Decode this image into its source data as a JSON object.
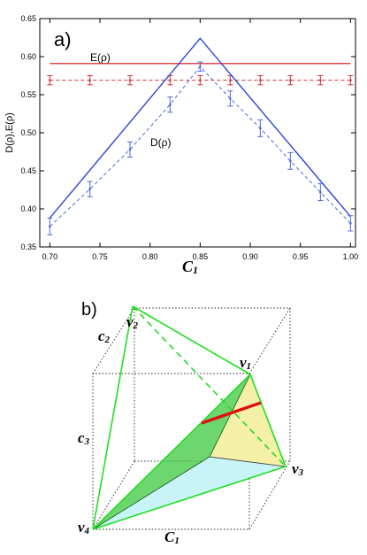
{
  "panel_a": {
    "label": "a)",
    "ylabel": "D(ρ),E(ρ)",
    "xlabel_main": "C",
    "xlabel_sub": "1",
    "annotation_E": "E(ρ)",
    "annotation_D": "D(ρ)"
  },
  "chart_data": {
    "type": "line",
    "xlim": [
      0.69,
      1.005
    ],
    "ylim": [
      0.35,
      0.65
    ],
    "x_ticks": [
      "0.70",
      "0.75",
      "0.80",
      "0.85",
      "0.90",
      "0.95",
      "1.00"
    ],
    "y_ticks": [
      "0.35",
      "0.40",
      "0.45",
      "0.50",
      "0.55",
      "0.60",
      "0.65"
    ],
    "series": [
      {
        "name": "E(ρ)",
        "kind": "theory",
        "color": "#e34a4a",
        "x": [
          0.7,
          1.0
        ],
        "y": [
          0.591,
          0.591
        ]
      },
      {
        "kind": "experiment",
        "color": "#d93030",
        "x": [
          0.7,
          0.74,
          0.78,
          0.82,
          0.85,
          0.88,
          0.91,
          0.94,
          0.97,
          1.0
        ],
        "y": [
          0.569,
          0.569,
          0.569,
          0.569,
          0.569,
          0.569,
          0.569,
          0.569,
          0.569,
          0.569
        ],
        "err": [
          0.006,
          0.006,
          0.006,
          0.006,
          0.006,
          0.006,
          0.006,
          0.006,
          0.006,
          0.006
        ]
      },
      {
        "name": "D(ρ)",
        "kind": "theory",
        "color": "#2b46d8",
        "x": [
          0.7,
          0.85,
          1.0
        ],
        "y": [
          0.388,
          0.624,
          0.39
        ]
      },
      {
        "kind": "experiment",
        "color": "#4a6ae0",
        "x": [
          0.7,
          0.74,
          0.78,
          0.82,
          0.85,
          0.88,
          0.91,
          0.94,
          0.97,
          1.0
        ],
        "y": [
          0.377,
          0.426,
          0.478,
          0.537,
          0.587,
          0.545,
          0.506,
          0.463,
          0.422,
          0.381
        ],
        "err": [
          0.011,
          0.01,
          0.01,
          0.01,
          0.006,
          0.01,
          0.011,
          0.011,
          0.011,
          0.01
        ]
      }
    ]
  },
  "panel_b": {
    "label": "b)",
    "vertex_letter": "v",
    "v1": "1",
    "v2": "2",
    "v3": "3",
    "v4": "4",
    "axis_letter": "c",
    "axis_letter_upper": "C",
    "c1": "1",
    "c2": "2",
    "c3": "3",
    "colors": {
      "edge": "#22dd22",
      "segment": "#e01010",
      "face_green": "#3ec83e",
      "face_yellow": "#f4f0a8",
      "face_cyan": "#c8f4f8"
    }
  }
}
